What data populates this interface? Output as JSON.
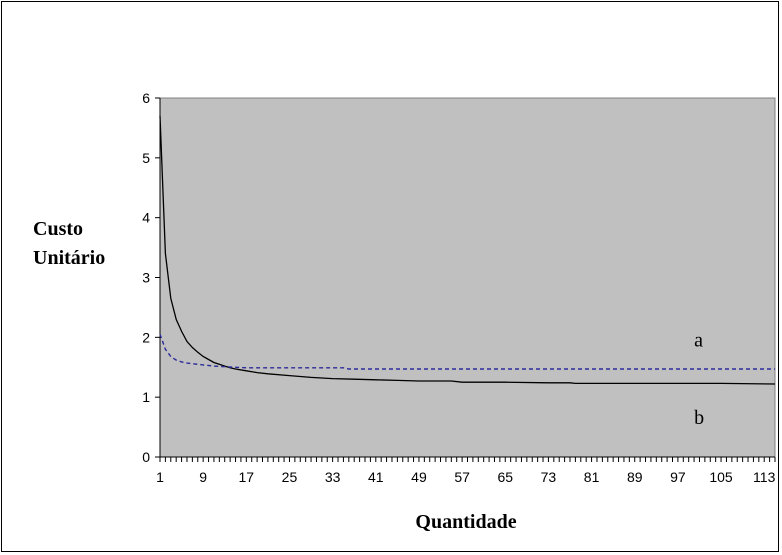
{
  "chart_data": {
    "type": "line",
    "title": "",
    "xlabel": "Quantidade",
    "ylabel_lines": [
      "Custo",
      "Unitário"
    ],
    "xlim": [
      1,
      115
    ],
    "ylim": [
      0,
      6
    ],
    "x_tick_labels": [
      "1",
      "9",
      "17",
      "25",
      "33",
      "41",
      "49",
      "57",
      "65",
      "73",
      "81",
      "89",
      "97",
      "105",
      "113"
    ],
    "y_tick_labels": [
      "0",
      "1",
      "2",
      "3",
      "4",
      "5",
      "6"
    ],
    "grid": false,
    "plot_background": "#c0c0c0",
    "annotations": [
      {
        "text": "a",
        "x": 100,
        "y": 1.85
      },
      {
        "text": "b",
        "x": 100,
        "y": 0.55
      }
    ],
    "series": [
      {
        "style": "solid",
        "color": "#000000",
        "x": [
          1,
          2,
          3,
          4,
          5,
          6,
          7,
          8,
          9,
          10,
          11,
          12,
          13,
          14,
          15,
          17,
          19,
          21,
          25,
          29,
          33,
          37,
          41,
          45,
          49,
          55,
          57,
          65,
          73,
          77,
          78,
          81,
          89,
          97,
          105,
          115
        ],
        "y": [
          5.7,
          3.4,
          2.65,
          2.3,
          2.1,
          1.93,
          1.83,
          1.75,
          1.68,
          1.63,
          1.58,
          1.55,
          1.52,
          1.49,
          1.47,
          1.44,
          1.41,
          1.39,
          1.36,
          1.33,
          1.31,
          1.3,
          1.29,
          1.28,
          1.27,
          1.27,
          1.25,
          1.25,
          1.24,
          1.24,
          1.23,
          1.23,
          1.23,
          1.23,
          1.23,
          1.22
        ]
      },
      {
        "style": "dashed",
        "color": "#2b2b9a",
        "x": [
          1,
          2,
          3,
          4,
          5,
          6,
          7,
          8,
          9,
          11,
          13,
          15,
          17,
          21,
          25,
          33,
          35,
          36,
          41,
          57,
          73,
          89,
          105,
          115
        ],
        "y": [
          2.05,
          1.8,
          1.68,
          1.62,
          1.59,
          1.57,
          1.56,
          1.55,
          1.54,
          1.52,
          1.51,
          1.5,
          1.49,
          1.49,
          1.49,
          1.49,
          1.49,
          1.47,
          1.47,
          1.47,
          1.47,
          1.47,
          1.47,
          1.47
        ]
      }
    ]
  }
}
